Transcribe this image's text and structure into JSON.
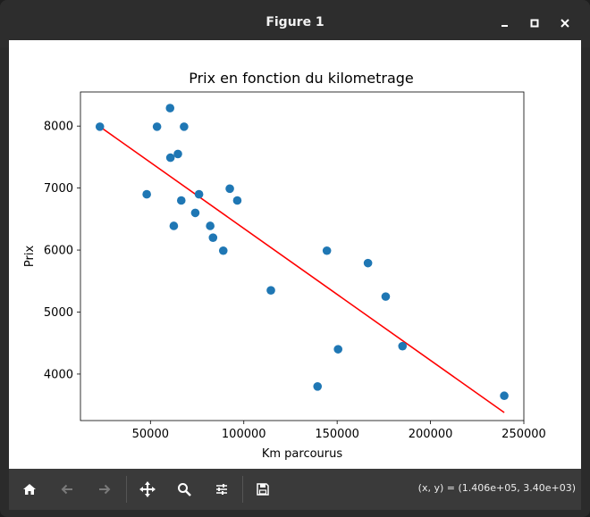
{
  "window": {
    "title": "Figure 1",
    "controls": [
      "minimize-icon",
      "maximize-icon",
      "close-icon"
    ]
  },
  "toolbar": {
    "buttons": [
      {
        "name": "home-button",
        "icon": "home-icon"
      },
      {
        "name": "back-button",
        "icon": "arrow-left-icon"
      },
      {
        "name": "forward-button",
        "icon": "arrow-right-icon"
      },
      {
        "name": "pan-button",
        "icon": "move-icon"
      },
      {
        "name": "zoom-button",
        "icon": "zoom-icon"
      },
      {
        "name": "configure-subplots-button",
        "icon": "sliders-icon"
      },
      {
        "name": "save-button",
        "icon": "save-icon"
      }
    ],
    "coords": "(x, y) = (1.406e+05, 3.40e+03)"
  },
  "colors": {
    "scatter": "#1f77b4",
    "line": "#ff0000",
    "titlebar": "#2d2d2d",
    "toolbar": "#3a3a3a"
  },
  "chart_data": {
    "type": "scatter",
    "title": "Prix en fonction du kilometrage",
    "xlabel": "Km parcourus",
    "ylabel": "Prix",
    "xlim": [
      12500,
      250000
    ],
    "ylim": [
      3250,
      8550
    ],
    "xticks": [
      50000,
      100000,
      150000,
      200000,
      250000
    ],
    "yticks": [
      4000,
      5000,
      6000,
      7000,
      8000
    ],
    "grid": false,
    "points": [
      [
        22900,
        7990
      ],
      [
        48000,
        6900
      ],
      [
        53500,
        7990
      ],
      [
        60500,
        8290
      ],
      [
        60700,
        7490
      ],
      [
        62500,
        6390
      ],
      [
        64700,
        7550
      ],
      [
        66500,
        6800
      ],
      [
        68000,
        7990
      ],
      [
        74000,
        6600
      ],
      [
        76000,
        6900
      ],
      [
        82000,
        6390
      ],
      [
        83500,
        6200
      ],
      [
        89000,
        5990
      ],
      [
        92500,
        6990
      ],
      [
        96500,
        6800
      ],
      [
        114500,
        5350
      ],
      [
        139500,
        3800
      ],
      [
        144500,
        5990
      ],
      [
        150500,
        4400
      ],
      [
        166500,
        5790
      ],
      [
        176000,
        5250
      ],
      [
        185000,
        4450
      ],
      [
        239500,
        3650
      ]
    ],
    "fit_line": {
      "x": [
        22900,
        239500
      ],
      "y": [
        7990,
        3380
      ]
    }
  }
}
